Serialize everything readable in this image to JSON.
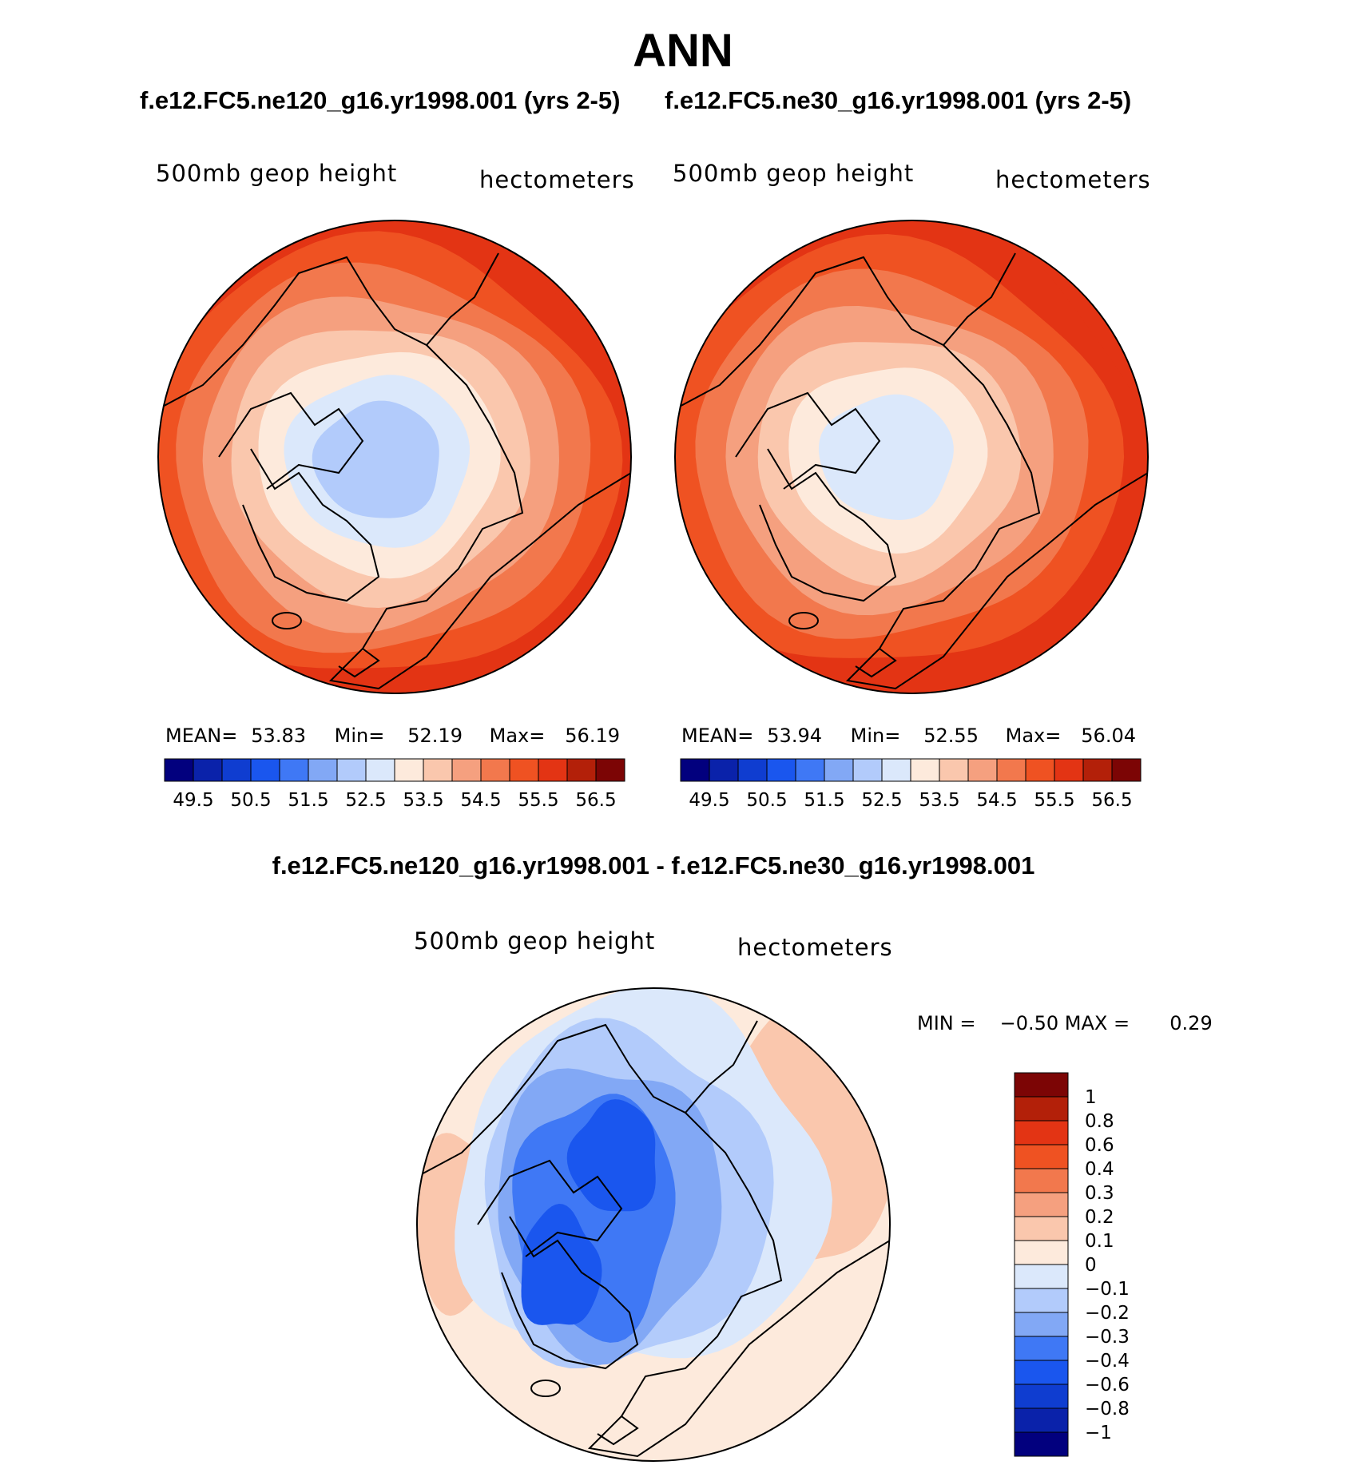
{
  "figure": {
    "title": "ANN",
    "case_titles": {
      "left": "f.e12.FC5.ne120_g16.yr1998.001 (yrs 2-5)",
      "right": "f.e12.FC5.ne30_g16.yr1998.001 (yrs 2-5)",
      "diff": "f.e12.FC5.ne120_g16.yr1998.001 - f.e12.FC5.ne30_g16.yr1998.001"
    }
  },
  "panels": [
    {
      "id": "ne120",
      "variable": "500mb geop height",
      "units": "hectometers",
      "stats": {
        "mean_label": "MEAN=",
        "mean": "53.83",
        "min_label": "Min=",
        "min": "52.19",
        "max_label": "Max=",
        "max": "56.19"
      }
    },
    {
      "id": "ne30",
      "variable": "500mb geop height",
      "units": "hectometers",
      "stats": {
        "mean_label": "MEAN=",
        "mean": "53.94",
        "min_label": "Min=",
        "min": "52.55",
        "max_label": "Max=",
        "max": "56.04"
      }
    },
    {
      "id": "diff",
      "variable": "500mb geop height",
      "units": "hectometers",
      "stats": {
        "min_label": "MIN =",
        "min": "−0.50",
        "max_label": "MAX =",
        "max": "0.29"
      }
    }
  ],
  "colorbars": {
    "absolute": {
      "colors": [
        "#02007e",
        "#0a22aa",
        "#0f3dd0",
        "#1a56ee",
        "#3f78f5",
        "#82a8f5",
        "#b2cbfb",
        "#dbe8fb",
        "#fdeadc",
        "#fac7ad",
        "#f5a07f",
        "#f2784d",
        "#ef5222",
        "#e33414",
        "#b32009",
        "#7c0505"
      ],
      "tick_labels": [
        "49.5",
        "50.5",
        "51.5",
        "52.5",
        "53.5",
        "54.5",
        "55.5",
        "56.5"
      ]
    },
    "difference": {
      "colors": [
        "#02007e",
        "#0a22aa",
        "#0f3dd0",
        "#1a56ee",
        "#3f78f5",
        "#82a8f5",
        "#b2cbfb",
        "#dbe8fb",
        "#fdeadc",
        "#fac7ad",
        "#f5a07f",
        "#f2784d",
        "#ef5222",
        "#e33414",
        "#b32009",
        "#7c0505"
      ],
      "tick_labels": [
        "1",
        "0.8",
        "0.6",
        "0.4",
        "0.3",
        "0.2",
        "0.1",
        "0",
        "−0.1",
        "−0.2",
        "−0.3",
        "−0.4",
        "−0.6",
        "−0.8",
        "−1"
      ]
    }
  },
  "map_fields": {
    "ne120_rings": [
      {
        "level": 56.5,
        "color": "#e33414"
      },
      {
        "level": 56.0,
        "color": "#ef5222"
      },
      {
        "level": 55.5,
        "color": "#f2784d"
      },
      {
        "level": 55.0,
        "color": "#f5a07f"
      },
      {
        "level": 54.5,
        "color": "#fac7ad"
      },
      {
        "level": 54.0,
        "color": "#fdeadc"
      },
      {
        "level": 53.0,
        "color": "#dbe8fb"
      },
      {
        "level": 52.5,
        "color": "#b2cbfb"
      }
    ],
    "ne30_rings": [
      {
        "level": 56.5,
        "color": "#e33414"
      },
      {
        "level": 56.0,
        "color": "#ef5222"
      },
      {
        "level": 55.5,
        "color": "#f2784d"
      },
      {
        "level": 55.0,
        "color": "#f5a07f"
      },
      {
        "level": 54.5,
        "color": "#fac7ad"
      },
      {
        "level": 54.0,
        "color": "#fdeadc"
      },
      {
        "level": 53.0,
        "color": "#dbe8fb"
      }
    ],
    "diff_blobs": [
      {
        "level": -0.1,
        "color": "#dbe8fb"
      },
      {
        "level": -0.2,
        "color": "#b2cbfb"
      },
      {
        "level": -0.3,
        "color": "#82a8f5"
      },
      {
        "level": -0.4,
        "color": "#3f78f5"
      },
      {
        "level": -0.6,
        "color": "#1a56ee"
      }
    ]
  }
}
